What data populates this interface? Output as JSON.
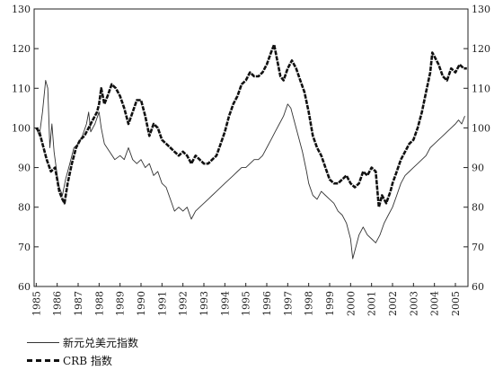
{
  "chart_data": {
    "type": "line",
    "title": "",
    "xlabel": "",
    "ylabel": "",
    "xlim": [
      1984.9,
      2005.6
    ],
    "ylim": [
      60,
      130
    ],
    "y_ticks": [
      60,
      70,
      80,
      90,
      100,
      110,
      120,
      130
    ],
    "x_ticks": [
      "1985",
      "1986",
      "1987",
      "1988",
      "1989",
      "1990",
      "1991",
      "1992",
      "1993",
      "1994",
      "1995",
      "1996",
      "1997",
      "1998",
      "1999",
      "2000",
      "2001",
      "2002",
      "2003",
      "2004",
      "2005"
    ],
    "grid": false,
    "legend_position": "bottom-left",
    "series": [
      {
        "name": "新元兑美元指数",
        "style": "thin",
        "color": "#333333",
        "points": [
          [
            1985.0,
            100
          ],
          [
            1985.15,
            98
          ],
          [
            1985.3,
            104
          ],
          [
            1985.45,
            112
          ],
          [
            1985.55,
            110
          ],
          [
            1985.65,
            95
          ],
          [
            1985.75,
            101
          ],
          [
            1985.85,
            94
          ],
          [
            1986.0,
            88
          ],
          [
            1986.1,
            85
          ],
          [
            1986.25,
            83
          ],
          [
            1986.4,
            87
          ],
          [
            1986.6,
            91
          ],
          [
            1986.8,
            95
          ],
          [
            1987.0,
            96
          ],
          [
            1987.2,
            98
          ],
          [
            1987.4,
            101
          ],
          [
            1987.5,
            104
          ],
          [
            1987.6,
            99
          ],
          [
            1987.8,
            101
          ],
          [
            1988.0,
            104
          ],
          [
            1988.1,
            100
          ],
          [
            1988.25,
            96
          ],
          [
            1988.5,
            94
          ],
          [
            1988.75,
            92
          ],
          [
            1989.0,
            93
          ],
          [
            1989.2,
            92
          ],
          [
            1989.4,
            95
          ],
          [
            1989.6,
            92
          ],
          [
            1989.8,
            91
          ],
          [
            1990.0,
            92
          ],
          [
            1990.2,
            90
          ],
          [
            1990.4,
            91
          ],
          [
            1990.6,
            88
          ],
          [
            1990.8,
            89
          ],
          [
            1991.0,
            86
          ],
          [
            1991.2,
            85
          ],
          [
            1991.4,
            82
          ],
          [
            1991.6,
            79
          ],
          [
            1991.8,
            80
          ],
          [
            1992.0,
            79
          ],
          [
            1992.2,
            80
          ],
          [
            1992.4,
            77
          ],
          [
            1992.6,
            79
          ],
          [
            1992.8,
            80
          ],
          [
            1993.0,
            81
          ],
          [
            1993.2,
            82
          ],
          [
            1993.4,
            83
          ],
          [
            1993.6,
            84
          ],
          [
            1993.8,
            85
          ],
          [
            1994.0,
            86
          ],
          [
            1994.2,
            87
          ],
          [
            1994.4,
            88
          ],
          [
            1994.6,
            89
          ],
          [
            1994.8,
            90
          ],
          [
            1995.0,
            90
          ],
          [
            1995.2,
            91
          ],
          [
            1995.4,
            92
          ],
          [
            1995.6,
            92
          ],
          [
            1995.8,
            93
          ],
          [
            1996.0,
            95
          ],
          [
            1996.2,
            97
          ],
          [
            1996.4,
            99
          ],
          [
            1996.6,
            101
          ],
          [
            1996.8,
            103
          ],
          [
            1997.0,
            106
          ],
          [
            1997.15,
            105
          ],
          [
            1997.3,
            102
          ],
          [
            1997.5,
            98
          ],
          [
            1997.7,
            94
          ],
          [
            1997.9,
            89
          ],
          [
            1998.0,
            86
          ],
          [
            1998.2,
            83
          ],
          [
            1998.4,
            82
          ],
          [
            1998.6,
            84
          ],
          [
            1998.8,
            83
          ],
          [
            1999.0,
            82
          ],
          [
            1999.2,
            81
          ],
          [
            1999.4,
            79
          ],
          [
            1999.6,
            78
          ],
          [
            1999.8,
            76
          ],
          [
            2000.0,
            72
          ],
          [
            2000.1,
            67
          ],
          [
            2000.25,
            70
          ],
          [
            2000.4,
            73
          ],
          [
            2000.6,
            75
          ],
          [
            2000.8,
            73
          ],
          [
            2001.0,
            72
          ],
          [
            2001.2,
            71
          ],
          [
            2001.4,
            73
          ],
          [
            2001.6,
            76
          ],
          [
            2001.8,
            78
          ],
          [
            2002.0,
            80
          ],
          [
            2002.2,
            83
          ],
          [
            2002.4,
            86
          ],
          [
            2002.6,
            88
          ],
          [
            2002.8,
            89
          ],
          [
            2003.0,
            90
          ],
          [
            2003.2,
            91
          ],
          [
            2003.4,
            92
          ],
          [
            2003.6,
            93
          ],
          [
            2003.8,
            95
          ],
          [
            2004.0,
            96
          ],
          [
            2004.2,
            97
          ],
          [
            2004.4,
            98
          ],
          [
            2004.6,
            99
          ],
          [
            2004.8,
            100
          ],
          [
            2005.0,
            101
          ],
          [
            2005.15,
            102
          ],
          [
            2005.3,
            101
          ],
          [
            2005.45,
            103
          ]
        ]
      },
      {
        "name": "CRB 指数",
        "style": "thick",
        "color": "#111111",
        "points": [
          [
            1985.0,
            100
          ],
          [
            1985.15,
            99
          ],
          [
            1985.3,
            96
          ],
          [
            1985.5,
            92
          ],
          [
            1985.7,
            89
          ],
          [
            1985.9,
            90
          ],
          [
            1986.0,
            87
          ],
          [
            1986.1,
            84
          ],
          [
            1986.25,
            82
          ],
          [
            1986.35,
            81
          ],
          [
            1986.5,
            86
          ],
          [
            1986.7,
            91
          ],
          [
            1986.9,
            95
          ],
          [
            1987.1,
            97
          ],
          [
            1987.3,
            98
          ],
          [
            1987.5,
            100
          ],
          [
            1987.7,
            102
          ],
          [
            1987.9,
            104
          ],
          [
            1988.0,
            106
          ],
          [
            1988.1,
            110
          ],
          [
            1988.25,
            106
          ],
          [
            1988.4,
            108
          ],
          [
            1988.6,
            111
          ],
          [
            1988.8,
            110
          ],
          [
            1989.0,
            108
          ],
          [
            1989.2,
            105
          ],
          [
            1989.4,
            101
          ],
          [
            1989.6,
            104
          ],
          [
            1989.8,
            107
          ],
          [
            1990.0,
            107
          ],
          [
            1990.2,
            103
          ],
          [
            1990.4,
            98
          ],
          [
            1990.6,
            101
          ],
          [
            1990.8,
            100
          ],
          [
            1991.0,
            97
          ],
          [
            1991.2,
            96
          ],
          [
            1991.4,
            95
          ],
          [
            1991.6,
            94
          ],
          [
            1991.8,
            93
          ],
          [
            1992.0,
            94
          ],
          [
            1992.2,
            93
          ],
          [
            1992.4,
            91
          ],
          [
            1992.6,
            93
          ],
          [
            1992.8,
            92
          ],
          [
            1993.0,
            91
          ],
          [
            1993.2,
            91
          ],
          [
            1993.4,
            92
          ],
          [
            1993.6,
            93
          ],
          [
            1993.8,
            96
          ],
          [
            1994.0,
            99
          ],
          [
            1994.2,
            103
          ],
          [
            1994.4,
            106
          ],
          [
            1994.6,
            108
          ],
          [
            1994.8,
            111
          ],
          [
            1995.0,
            112
          ],
          [
            1995.2,
            114
          ],
          [
            1995.4,
            113
          ],
          [
            1995.6,
            113
          ],
          [
            1995.8,
            114
          ],
          [
            1996.0,
            116
          ],
          [
            1996.2,
            119
          ],
          [
            1996.35,
            121
          ],
          [
            1996.5,
            117
          ],
          [
            1996.65,
            113
          ],
          [
            1996.8,
            112
          ],
          [
            1997.0,
            115
          ],
          [
            1997.2,
            117
          ],
          [
            1997.4,
            115
          ],
          [
            1997.6,
            112
          ],
          [
            1997.8,
            109
          ],
          [
            1998.0,
            104
          ],
          [
            1998.2,
            98
          ],
          [
            1998.4,
            95
          ],
          [
            1998.6,
            93
          ],
          [
            1998.8,
            90
          ],
          [
            1999.0,
            87
          ],
          [
            1999.2,
            86
          ],
          [
            1999.4,
            86
          ],
          [
            1999.6,
            87
          ],
          [
            1999.8,
            88
          ],
          [
            2000.0,
            86
          ],
          [
            2000.2,
            85
          ],
          [
            2000.4,
            86
          ],
          [
            2000.6,
            89
          ],
          [
            2000.8,
            88
          ],
          [
            2001.0,
            90
          ],
          [
            2001.2,
            89
          ],
          [
            2001.35,
            80
          ],
          [
            2001.5,
            83
          ],
          [
            2001.7,
            81
          ],
          [
            2001.9,
            84
          ],
          [
            2002.0,
            86
          ],
          [
            2002.2,
            89
          ],
          [
            2002.4,
            92
          ],
          [
            2002.6,
            94
          ],
          [
            2002.8,
            96
          ],
          [
            2003.0,
            97
          ],
          [
            2003.2,
            100
          ],
          [
            2003.4,
            104
          ],
          [
            2003.6,
            109
          ],
          [
            2003.8,
            114
          ],
          [
            2003.9,
            119
          ],
          [
            2004.0,
            118
          ],
          [
            2004.2,
            116
          ],
          [
            2004.4,
            113
          ],
          [
            2004.6,
            112
          ],
          [
            2004.8,
            115
          ],
          [
            2005.0,
            114
          ],
          [
            2005.2,
            116
          ],
          [
            2005.4,
            115
          ],
          [
            2005.55,
            115
          ]
        ]
      }
    ]
  },
  "legend": {
    "items": [
      {
        "label": "新元兑美元指数"
      },
      {
        "label": "CRB 指数"
      }
    ]
  }
}
